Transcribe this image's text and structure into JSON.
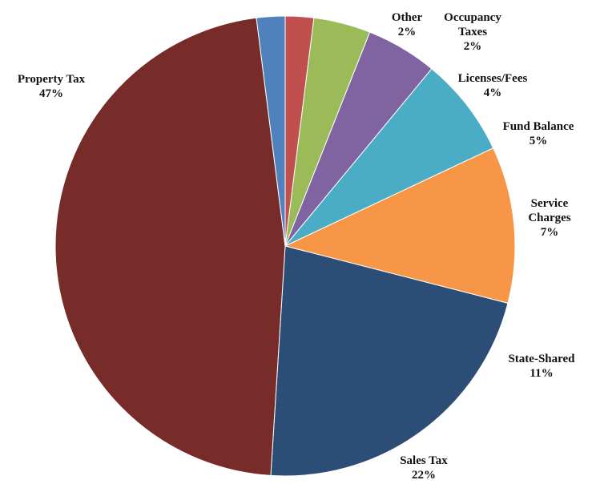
{
  "chart_data": {
    "type": "pie",
    "title": "",
    "start_angle_deg": 0,
    "direction": "clockwise",
    "slices": [
      {
        "label_lines": [
          "Occupancy",
          "Taxes"
        ],
        "value": 2,
        "value_label": "2%",
        "color": "#C0504D"
      },
      {
        "label_lines": [
          "Licenses/Fees"
        ],
        "value": 4,
        "value_label": "4%",
        "color": "#9BBB59"
      },
      {
        "label_lines": [
          "Fund Balance"
        ],
        "value": 5,
        "value_label": "5%",
        "color": "#8064A2"
      },
      {
        "label_lines": [
          "Service",
          "Charges"
        ],
        "value": 7,
        "value_label": "7%",
        "color": "#4BACC6"
      },
      {
        "label_lines": [
          "State-Shared"
        ],
        "value": 11,
        "value_label": "11%",
        "color": "#F79646"
      },
      {
        "label_lines": [
          "Sales Tax"
        ],
        "value": 22,
        "value_label": "22%",
        "color": "#2C4D75"
      },
      {
        "label_lines": [
          "Property Tax"
        ],
        "value": 47,
        "value_label": "47%",
        "color": "#772C2A"
      },
      {
        "label_lines": [
          "Other"
        ],
        "value": 2,
        "value_label": "2%",
        "color": "#4F81BD"
      }
    ]
  }
}
